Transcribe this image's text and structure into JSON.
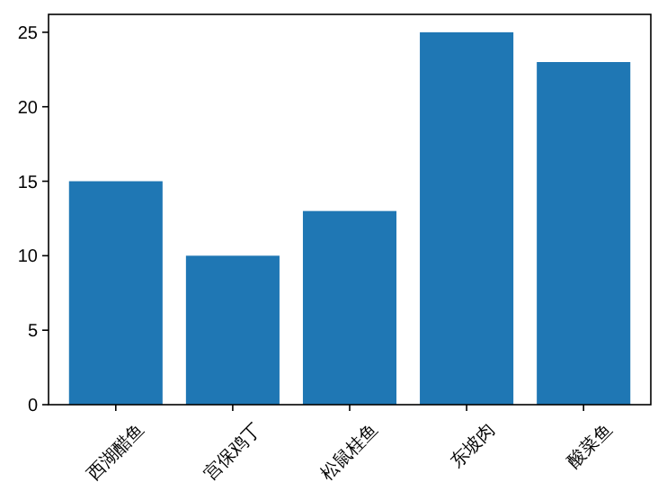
{
  "chart_data": {
    "type": "bar",
    "categories": [
      "西湖醋鱼",
      "宫保鸡丁",
      "松鼠桂鱼",
      "东坡肉",
      "酸菜鱼"
    ],
    "values": [
      15,
      10,
      13,
      25,
      23
    ],
    "color": "#1f77b4",
    "ylim": [
      0,
      26.2
    ],
    "yticks": [
      0,
      5,
      10,
      15,
      20,
      25
    ],
    "grid": false
  }
}
